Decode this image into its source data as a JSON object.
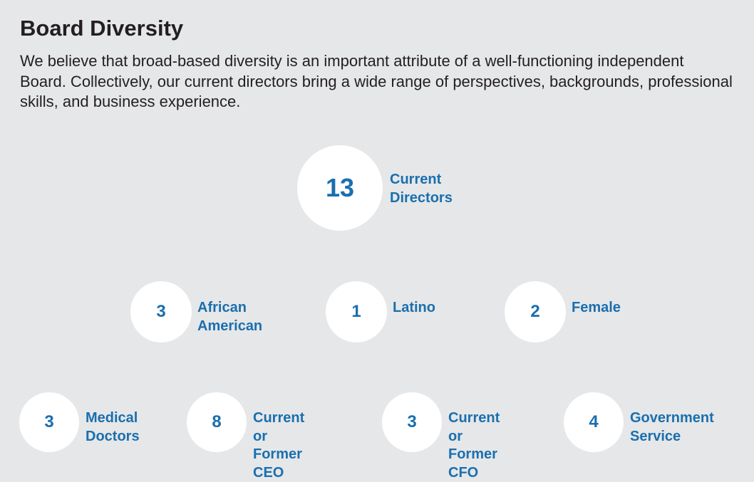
{
  "header": {
    "title": "Board Diversity",
    "description": "We believe that broad-based diversity is an important attribute of a well-functioning independent Board. Collectively, our current directors bring a wide range of perspectives, backgrounds, professional skills, and business experience."
  },
  "stats": {
    "directors": {
      "value": "13",
      "label": "Current\nDirectors"
    },
    "african_american": {
      "value": "3",
      "label": "African\nAmerican"
    },
    "latino": {
      "value": "1",
      "label": "Latino"
    },
    "female": {
      "value": "2",
      "label": "Female"
    },
    "medical_doctors": {
      "value": "3",
      "label": "Medical\nDoctors"
    },
    "ceo": {
      "value": "8",
      "label": "Current or\nFormer CEO"
    },
    "cfo": {
      "value": "3",
      "label": "Current or\nFormer CFO"
    },
    "government": {
      "value": "4",
      "label": "Government\nService"
    }
  },
  "colors": {
    "background": "#e6e7e9",
    "accent": "#1a6fae",
    "circle": "#ffffff",
    "text": "#231f20"
  }
}
